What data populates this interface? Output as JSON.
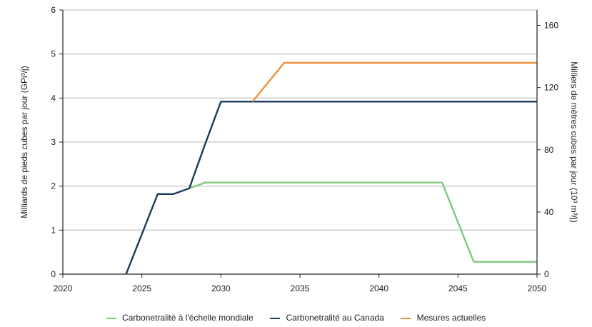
{
  "chart_data": {
    "type": "line",
    "title": "",
    "xlabel": "",
    "ylabel": "Milliards de pieds cubes par jour (GPi³/j)",
    "y2label": "Milliers de mètres cubes par jour (10³ m³/j)",
    "xlim": [
      2020,
      2050
    ],
    "ylim": [
      0,
      6
    ],
    "y2lim": [
      0,
      169.9
    ],
    "x_ticks": [
      2020,
      2025,
      2030,
      2035,
      2040,
      2045,
      2050
    ],
    "y_ticks": [
      0,
      1,
      2,
      3,
      4,
      5,
      6
    ],
    "y2_ticks": [
      0,
      40,
      80,
      120,
      160
    ],
    "grid": true,
    "legend_position": "bottom",
    "series": [
      {
        "name": "Carbonetralité à l'échelle mondiale",
        "color": "#7ec87a",
        "x": [
          2028,
          2029,
          2044,
          2046,
          2050
        ],
        "y": [
          1.95,
          2.08,
          2.08,
          0.28,
          0.28
        ]
      },
      {
        "name": "Carbonetralité au Canada",
        "color": "#1b3a5c",
        "x": [
          2024,
          2026,
          2027,
          2028,
          2029,
          2030,
          2050
        ],
        "y": [
          0,
          1.82,
          1.82,
          1.95,
          2.95,
          3.92,
          3.92
        ]
      },
      {
        "name": "Mesures actuelles",
        "color": "#f2913d",
        "x": [
          2032,
          2034,
          2050
        ],
        "y": [
          3.92,
          4.8,
          4.8
        ]
      }
    ]
  }
}
